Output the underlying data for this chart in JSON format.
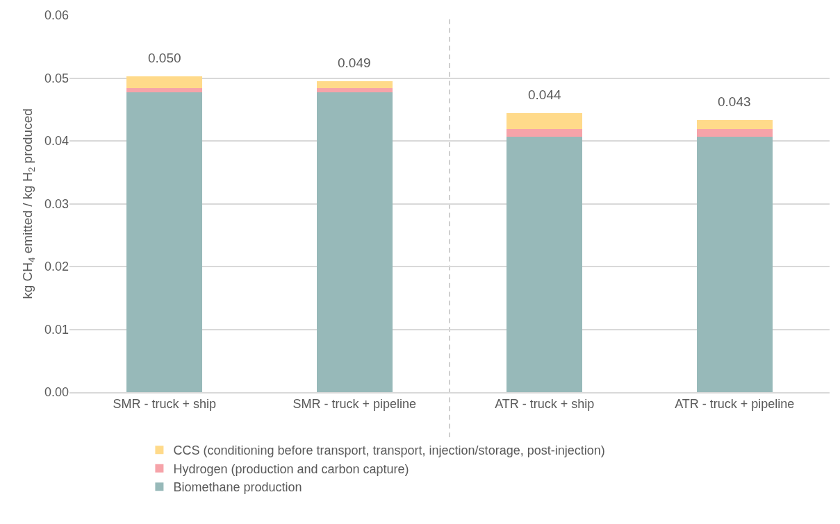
{
  "chart_data": {
    "type": "bar",
    "stacked": true,
    "ylabel": "kg CH$_{4}$ emitted / kg H$_{2}$ produced",
    "categories": [
      "SMR - truck + ship",
      "SMR - truck + pipeline",
      "ATR - truck + ship",
      "ATR - truck + pipeline"
    ],
    "series": [
      {
        "name": "Biomethane production",
        "color": "#97b9b9",
        "values": [
          0.0477,
          0.0477,
          0.0407,
          0.0407
        ]
      },
      {
        "name": "Hydrogen (production and carbon capture)",
        "color": "#f6a3a9",
        "values": [
          0.0007,
          0.0007,
          0.0012,
          0.0012
        ]
      },
      {
        "name": "CCS (conditioning before transport, transport, injection/storage, post-injection)",
        "color": "#ffda8a",
        "values": [
          0.0019,
          0.0011,
          0.0025,
          0.0014
        ]
      }
    ],
    "totals": [
      "0.050",
      "0.049",
      "0.044",
      "0.043"
    ],
    "ylim": [
      0,
      0.06
    ],
    "yticks": [
      {
        "value": 0,
        "label": "0.00"
      },
      {
        "value": 0.01,
        "label": "0.01"
      },
      {
        "value": 0.02,
        "label": "0.02"
      },
      {
        "value": 0.03,
        "label": "0.03"
      },
      {
        "value": 0.04,
        "label": "0.04"
      },
      {
        "value": 0.05,
        "label": "0.05"
      },
      {
        "value": 0.06,
        "label": "0.06"
      }
    ],
    "grid": "y",
    "legend": "bottom"
  }
}
